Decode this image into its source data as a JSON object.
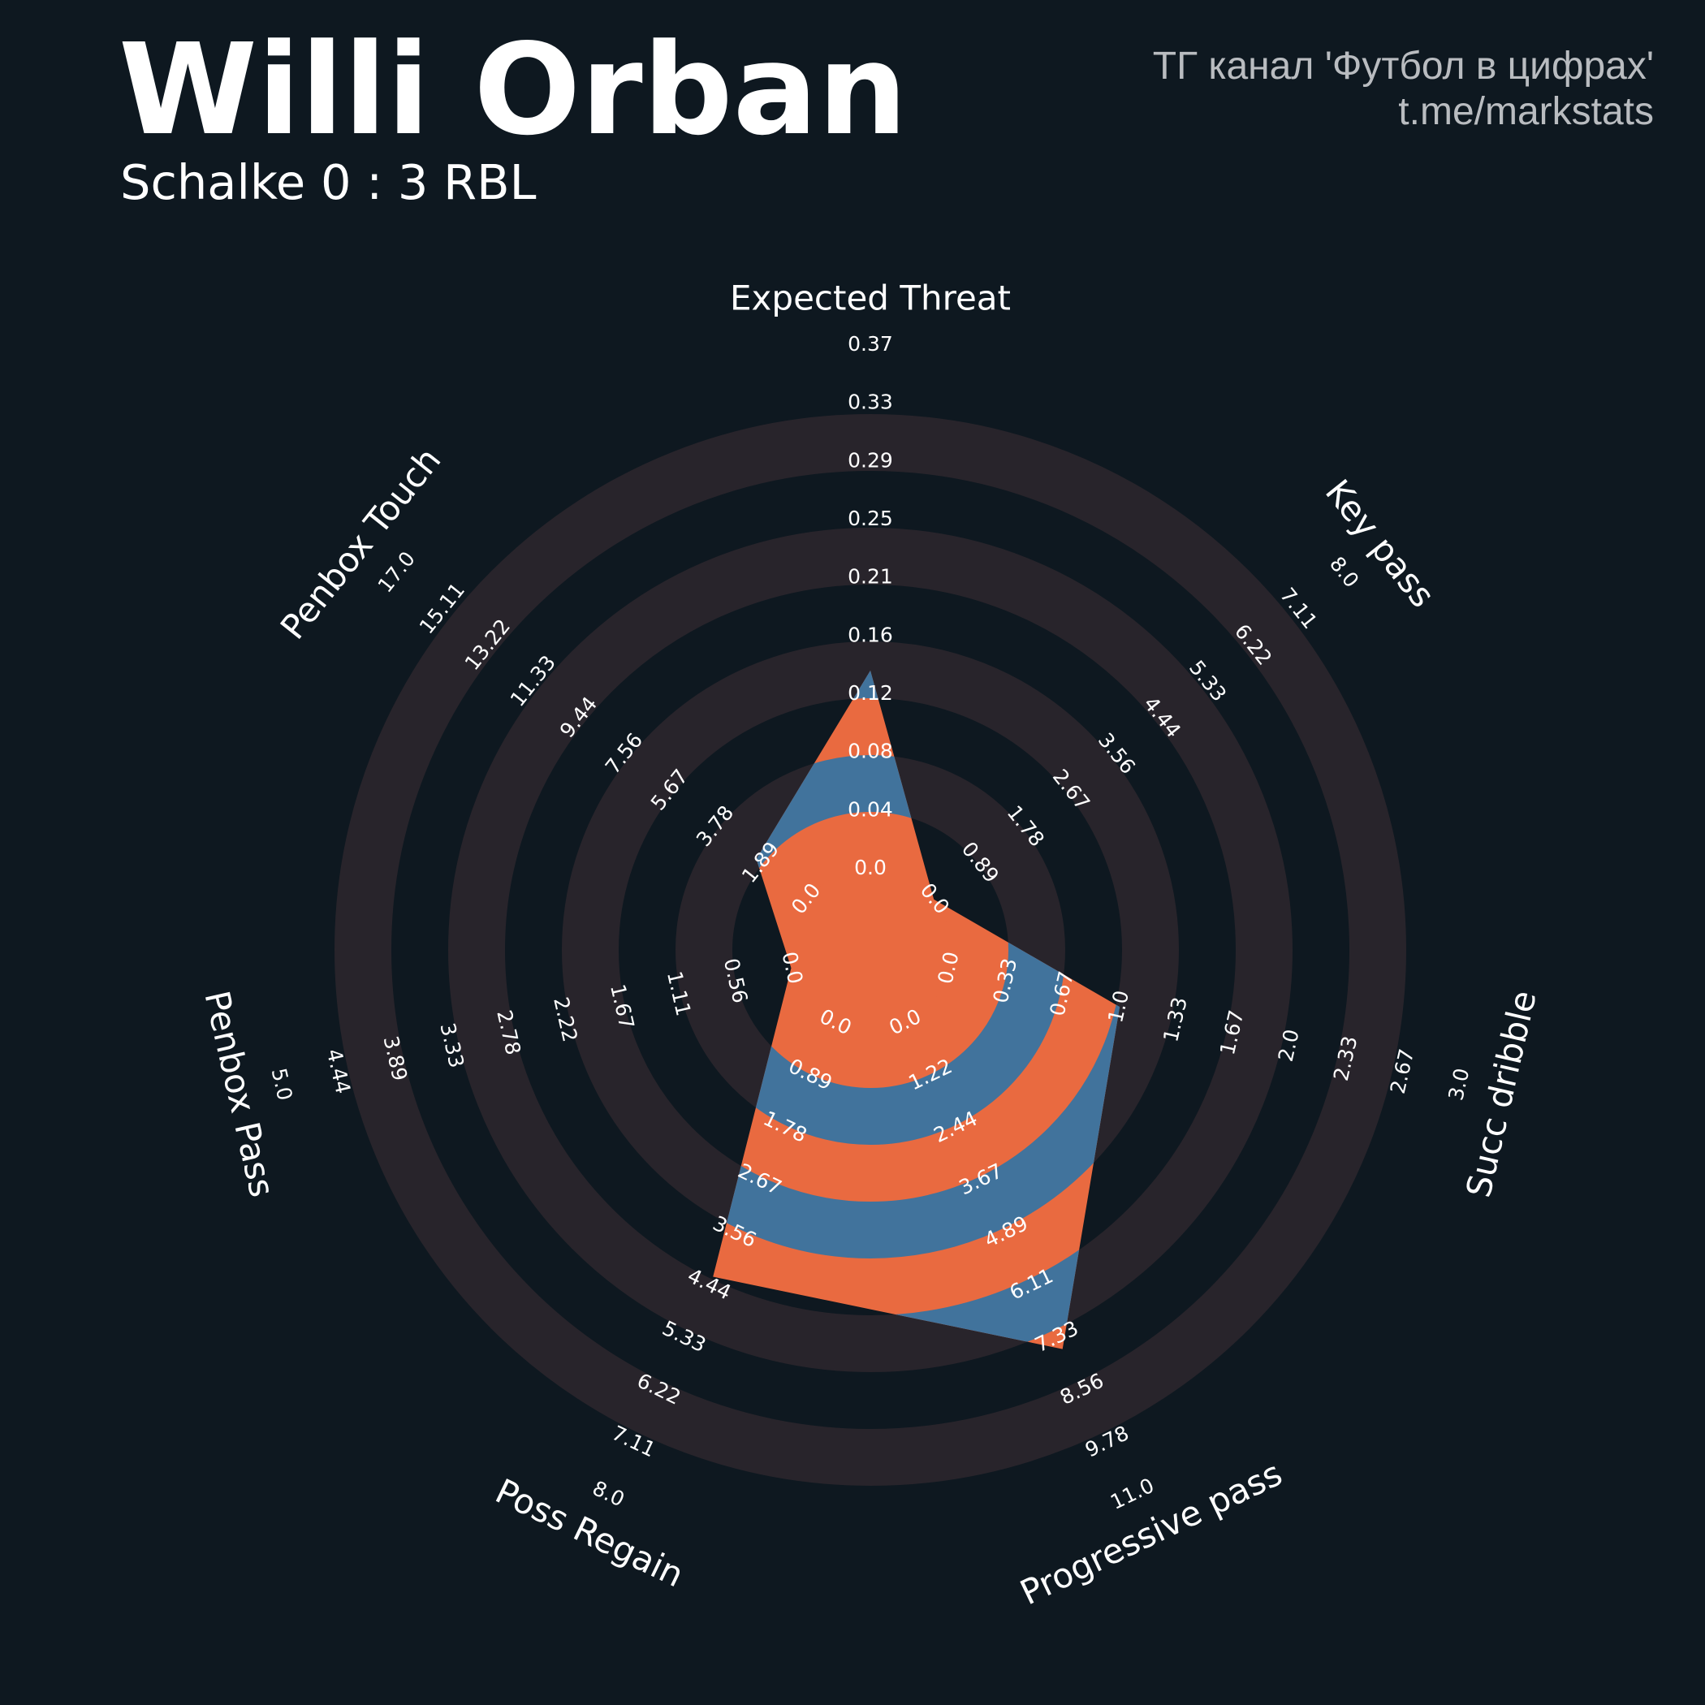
{
  "header": {
    "title": "Willi Orban",
    "subtitle": "Schalke 0 : 3 RBL",
    "credit_line1": "ТГ канал 'Футбол в цифрах'",
    "credit_line2": "t.me/markstats"
  },
  "colors": {
    "background": "#0e1820",
    "ring_band": "#28242b",
    "player_fill": "#e96a40",
    "player_band": "#41739c",
    "text": "#ffffff",
    "credit_text": "#b9bcc0"
  },
  "chart_data": {
    "type": "radar",
    "title": "Willi Orban",
    "params": [
      "Expected Threat",
      "Key pass",
      "Succ dribble",
      "Progressive pass",
      "Poss Regain",
      "Penbox Pass",
      "Penbox Touch"
    ],
    "ranges": [
      [
        0.0,
        0.37
      ],
      [
        0.0,
        8.0
      ],
      [
        0.0,
        3.0
      ],
      [
        0.0,
        11.0
      ],
      [
        0.0,
        8.0
      ],
      [
        0.0,
        5.0
      ],
      [
        0.0,
        17.0
      ]
    ],
    "values": [
      0.14,
      0.0,
      1.0,
      7.6,
      4.3,
      0.0,
      2.1
    ],
    "tick_labels": [
      [
        "0.0",
        "0.04",
        "0.08",
        "0.12",
        "0.16",
        "0.21",
        "0.25",
        "0.29",
        "0.33",
        "0.37"
      ],
      [
        "0.0",
        "0.89",
        "1.78",
        "2.67",
        "3.56",
        "4.44",
        "5.33",
        "6.22",
        "7.11",
        "8.0"
      ],
      [
        "0.0",
        "0.33",
        "0.67",
        "1.0",
        "1.33",
        "1.67",
        "2.0",
        "2.33",
        "2.67",
        "3.0"
      ],
      [
        "0.0",
        "1.22",
        "2.44",
        "3.67",
        "4.89",
        "6.11",
        "7.33",
        "8.56",
        "9.78",
        "11.0"
      ],
      [
        "0.0",
        "0.89",
        "1.78",
        "2.67",
        "3.56",
        "4.44",
        "5.33",
        "6.22",
        "7.11",
        "8.0"
      ],
      [
        "0.0",
        "0.56",
        "1.11",
        "1.67",
        "2.22",
        "2.78",
        "3.33",
        "3.89",
        "4.44",
        "5.0"
      ],
      [
        "0.0",
        "1.89",
        "3.78",
        "5.67",
        "7.56",
        "9.44",
        "11.33",
        "13.22",
        "15.11",
        "17.0"
      ]
    ],
    "grid": true,
    "legend": "none"
  }
}
